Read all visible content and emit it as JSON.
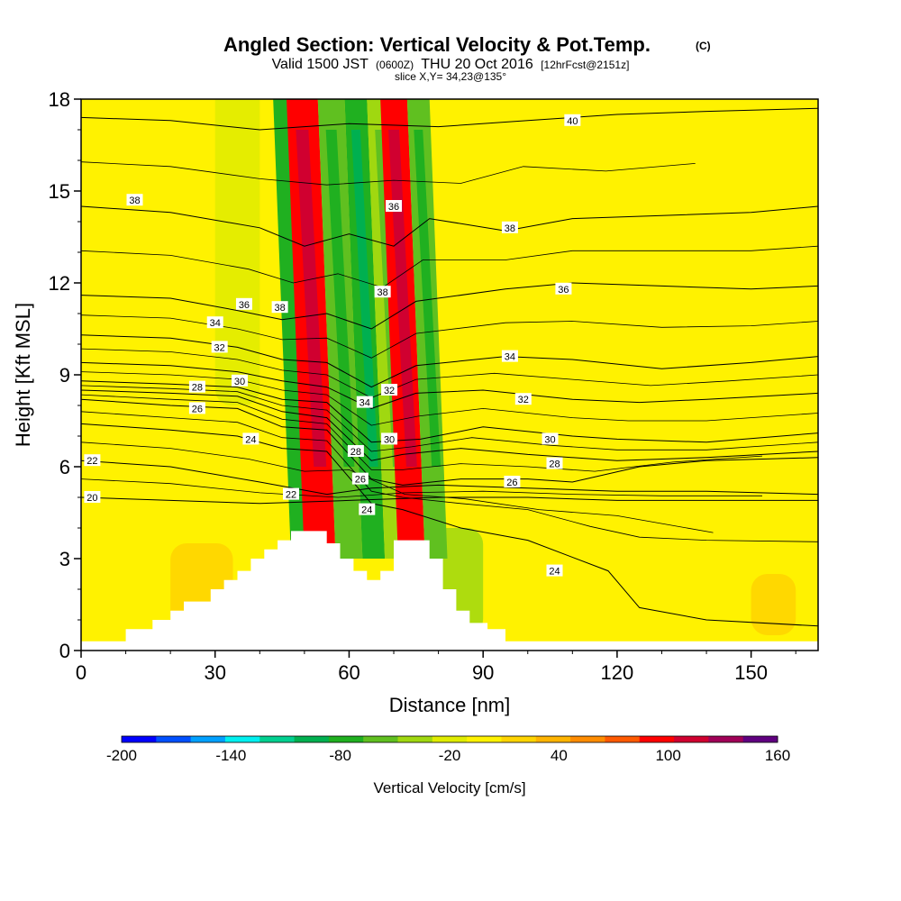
{
  "chart_data": {
    "type": "heatmap",
    "title": "Angled Section: Vertical Velocity & Pot.Temp.",
    "title_units": "(C)",
    "subtitle": {
      "prefix": "Valid 1500 JST",
      "utc": "(0600Z)",
      "date": "THU 20 Oct 2016",
      "forecast": "[12hrFcst@2151z]"
    },
    "slice_label": "slice X,Y= 34,23@135°",
    "xlabel": "Distance [nm]",
    "ylabel": "Height [Kft MSL]",
    "xlim": [
      0,
      165
    ],
    "ylim": [
      0,
      18
    ],
    "x_ticks": [
      "0",
      "30",
      "60",
      "90",
      "120",
      "150"
    ],
    "y_ticks": [
      "0",
      "3",
      "6",
      "9",
      "12",
      "15",
      "18"
    ],
    "colorbar": {
      "label": "Vertical Velocity [cm/s]",
      "range": [
        -200,
        160
      ],
      "step": 20,
      "tick_labels": [
        "-200",
        "-140",
        "-80",
        "-20",
        "40",
        "100",
        "160"
      ],
      "colors": [
        "#0000ff",
        "#0050ff",
        "#00a0ff",
        "#00f0f0",
        "#00d090",
        "#00b050",
        "#20b020",
        "#60c020",
        "#a0d810",
        "#e0ec00",
        "#fff200",
        "#ffd400",
        "#ffb400",
        "#ff8c00",
        "#ff5a00",
        "#ff0000",
        "#d00030",
        "#a00058",
        "#600080"
      ]
    },
    "vertical_velocity_bands": [
      {
        "x": [
          47,
          53
        ],
        "value": -70
      },
      {
        "x": [
          50,
          57
        ],
        "value": 105
      },
      {
        "x": [
          57,
          63
        ],
        "value": -60
      },
      {
        "x": [
          63,
          68
        ],
        "value": -75
      },
      {
        "x": [
          68,
          74
        ],
        "value": -40
      },
      {
        "x": [
          71,
          77
        ],
        "value": 100
      },
      {
        "x": [
          77,
          82
        ],
        "value": -60
      }
    ],
    "terrain": [
      [
        0,
        0.3
      ],
      [
        10,
        0.7
      ],
      [
        16,
        1.0
      ],
      [
        20,
        1.3
      ],
      [
        23,
        1.6
      ],
      [
        26,
        1.6
      ],
      [
        29,
        2.0
      ],
      [
        32,
        2.3
      ],
      [
        35,
        2.6
      ],
      [
        38,
        3.0
      ],
      [
        41,
        3.3
      ],
      [
        44,
        3.6
      ],
      [
        47,
        3.9
      ],
      [
        52,
        3.9
      ],
      [
        55,
        3.5
      ],
      [
        58,
        3.0
      ],
      [
        61,
        2.6
      ],
      [
        64,
        2.3
      ],
      [
        67,
        2.6
      ],
      [
        70,
        3.6
      ],
      [
        75,
        3.6
      ],
      [
        78,
        3.0
      ],
      [
        81,
        2.0
      ],
      [
        84,
        1.3
      ],
      [
        87,
        0.9
      ],
      [
        91,
        0.7
      ],
      [
        95,
        0.3
      ],
      [
        165,
        0.3
      ]
    ],
    "theta_contours": [
      {
        "level": 20,
        "label": "20",
        "points": [
          [
            0,
            5.0
          ],
          [
            20,
            4.9
          ],
          [
            40,
            4.8
          ],
          [
            60,
            4.9
          ],
          [
            80,
            5.0
          ],
          [
            100,
            5.0
          ],
          [
            120,
            4.9
          ],
          [
            140,
            4.9
          ],
          [
            165,
            4.9
          ]
        ]
      },
      {
        "level": 22,
        "label": "22",
        "points": [
          [
            0,
            6.2
          ],
          [
            20,
            6.0
          ],
          [
            40,
            5.5
          ],
          [
            55,
            5.1
          ],
          [
            65,
            5.3
          ],
          [
            80,
            5.4
          ],
          [
            100,
            5.3
          ],
          [
            120,
            5.2
          ],
          [
            140,
            5.2
          ],
          [
            165,
            5.1
          ]
        ]
      },
      {
        "level": 24,
        "label": "24",
        "points": [
          [
            0,
            7.4
          ],
          [
            20,
            7.2
          ],
          [
            35,
            7.0
          ],
          [
            45,
            6.6
          ],
          [
            55,
            6.5
          ],
          [
            65,
            4.8
          ],
          [
            72,
            4.6
          ],
          [
            85,
            4.0
          ],
          [
            100,
            3.6
          ],
          [
            118,
            2.6
          ],
          [
            125,
            1.4
          ],
          [
            140,
            1.0
          ],
          [
            165,
            0.8
          ]
        ]
      },
      {
        "level": 26,
        "label": "26",
        "points": [
          [
            0,
            8.2
          ],
          [
            20,
            8.0
          ],
          [
            35,
            7.9
          ],
          [
            45,
            7.3
          ],
          [
            55,
            7.2
          ],
          [
            65,
            5.6
          ],
          [
            72,
            5.4
          ],
          [
            85,
            5.6
          ],
          [
            100,
            5.6
          ],
          [
            110,
            5.5
          ],
          [
            125,
            6.0
          ],
          [
            140,
            6.2
          ],
          [
            165,
            6.3
          ]
        ]
      },
      {
        "level": 28,
        "label": "28",
        "points": [
          [
            0,
            8.5
          ],
          [
            20,
            8.4
          ],
          [
            35,
            8.3
          ],
          [
            45,
            7.8
          ],
          [
            55,
            7.6
          ],
          [
            65,
            6.2
          ],
          [
            72,
            6.4
          ],
          [
            85,
            6.6
          ],
          [
            100,
            6.4
          ],
          [
            120,
            6.2
          ],
          [
            140,
            6.3
          ],
          [
            165,
            6.5
          ]
        ]
      },
      {
        "level": 30,
        "label": "30",
        "points": [
          [
            0,
            8.8
          ],
          [
            20,
            8.7
          ],
          [
            35,
            8.6
          ],
          [
            45,
            8.2
          ],
          [
            55,
            8.1
          ],
          [
            65,
            6.8
          ],
          [
            76,
            6.9
          ],
          [
            90,
            7.3
          ],
          [
            110,
            7.0
          ],
          [
            120,
            6.9
          ],
          [
            140,
            6.8
          ],
          [
            165,
            7.1
          ]
        ]
      },
      {
        "level": 32,
        "label": "32",
        "points": [
          [
            0,
            9.4
          ],
          [
            20,
            9.3
          ],
          [
            35,
            9.1
          ],
          [
            45,
            8.8
          ],
          [
            55,
            8.6
          ],
          [
            65,
            7.9
          ],
          [
            75,
            8.4
          ],
          [
            90,
            8.5
          ],
          [
            110,
            8.2
          ],
          [
            125,
            8.1
          ],
          [
            140,
            8.2
          ],
          [
            165,
            8.4
          ]
        ]
      },
      {
        "level": 34,
        "label": "34",
        "points": [
          [
            0,
            10.3
          ],
          [
            20,
            10.2
          ],
          [
            35,
            9.9
          ],
          [
            45,
            9.5
          ],
          [
            55,
            9.4
          ],
          [
            65,
            8.6
          ],
          [
            75,
            9.3
          ],
          [
            95,
            9.6
          ],
          [
            110,
            9.5
          ],
          [
            130,
            9.2
          ],
          [
            150,
            9.4
          ],
          [
            165,
            9.6
          ]
        ]
      },
      {
        "level": 36,
        "label": "36",
        "points": [
          [
            0,
            11.6
          ],
          [
            20,
            11.5
          ],
          [
            35,
            11.1
          ],
          [
            45,
            10.8
          ],
          [
            55,
            11.0
          ],
          [
            65,
            10.5
          ],
          [
            75,
            11.4
          ],
          [
            95,
            11.8
          ],
          [
            110,
            12.0
          ],
          [
            130,
            11.9
          ],
          [
            150,
            11.8
          ],
          [
            165,
            11.9
          ]
        ]
      },
      {
        "level": 38,
        "label": "38",
        "points": [
          [
            0,
            14.5
          ],
          [
            20,
            14.3
          ],
          [
            40,
            13.8
          ],
          [
            50,
            13.2
          ],
          [
            60,
            13.6
          ],
          [
            70,
            13.2
          ],
          [
            78,
            14.1
          ],
          [
            95,
            13.7
          ],
          [
            110,
            14.1
          ],
          [
            130,
            14.2
          ],
          [
            150,
            14.3
          ],
          [
            165,
            14.5
          ]
        ]
      },
      {
        "level": 40,
        "label": "40",
        "points": [
          [
            0,
            17.4
          ],
          [
            20,
            17.3
          ],
          [
            40,
            17.0
          ],
          [
            60,
            17.2
          ],
          [
            80,
            17.1
          ],
          [
            100,
            17.3
          ],
          [
            120,
            17.5
          ],
          [
            140,
            17.6
          ],
          [
            165,
            17.7
          ]
        ]
      }
    ],
    "contour_labels": [
      {
        "text": "38",
        "x": 12.0,
        "y": 14.7
      },
      {
        "text": "36",
        "x": 36.5,
        "y": 11.3
      },
      {
        "text": "38",
        "x": 44.5,
        "y": 11.2
      },
      {
        "text": "34",
        "x": 30.0,
        "y": 10.7
      },
      {
        "text": "32",
        "x": 31.0,
        "y": 9.9
      },
      {
        "text": "30",
        "x": 35.5,
        "y": 8.8
      },
      {
        "text": "28",
        "x": 26.0,
        "y": 8.6
      },
      {
        "text": "26",
        "x": 26.0,
        "y": 7.9
      },
      {
        "text": "24",
        "x": 38.0,
        "y": 6.9
      },
      {
        "text": "22",
        "x": 2.5,
        "y": 6.2
      },
      {
        "text": "20",
        "x": 2.5,
        "y": 5.0
      },
      {
        "text": "22",
        "x": 47.0,
        "y": 5.1
      },
      {
        "text": "36",
        "x": 70.0,
        "y": 14.5
      },
      {
        "text": "38",
        "x": 67.5,
        "y": 11.7
      },
      {
        "text": "34",
        "x": 63.5,
        "y": 8.1
      },
      {
        "text": "32",
        "x": 69.0,
        "y": 8.5
      },
      {
        "text": "30",
        "x": 69.0,
        "y": 6.9
      },
      {
        "text": "28",
        "x": 61.5,
        "y": 6.5
      },
      {
        "text": "26",
        "x": 62.5,
        "y": 5.6
      },
      {
        "text": "24",
        "x": 64.0,
        "y": 4.6
      },
      {
        "text": "38",
        "x": 96.0,
        "y": 13.8
      },
      {
        "text": "36",
        "x": 108.0,
        "y": 11.8
      },
      {
        "text": "34",
        "x": 96.0,
        "y": 9.6
      },
      {
        "text": "32",
        "x": 99.0,
        "y": 8.2
      },
      {
        "text": "30",
        "x": 105.0,
        "y": 6.9
      },
      {
        "text": "28",
        "x": 106.0,
        "y": 6.1
      },
      {
        "text": "26",
        "x": 96.5,
        "y": 5.5
      },
      {
        "text": "24",
        "x": 106.0,
        "y": 2.6
      },
      {
        "text": "40",
        "x": 110.0,
        "y": 17.3
      }
    ]
  }
}
